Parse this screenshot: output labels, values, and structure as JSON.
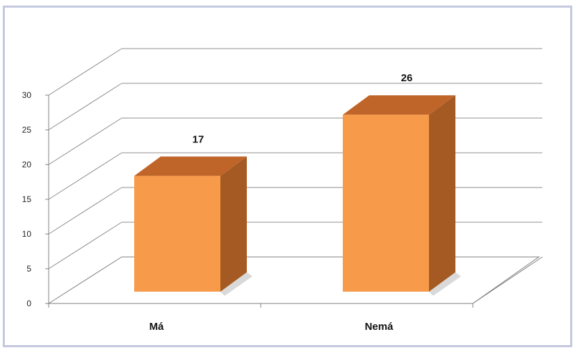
{
  "chart_data": {
    "type": "bar",
    "style": "3d-column",
    "categories": [
      "Má",
      "Nemá"
    ],
    "values": [
      17,
      26
    ],
    "data_labels": [
      "17",
      "26"
    ],
    "ylim": [
      0,
      30
    ],
    "yticks": [
      0,
      5,
      10,
      15,
      20,
      25,
      30
    ],
    "ytick_labels": [
      "0",
      "5",
      "10",
      "15",
      "20",
      "25",
      "30"
    ],
    "grid": true,
    "legend": "none",
    "colors": {
      "bar_front": "#f79a4a",
      "bar_top": "#c0652a",
      "bar_side": "#a45a22",
      "frame": "#c3c8df"
    }
  }
}
